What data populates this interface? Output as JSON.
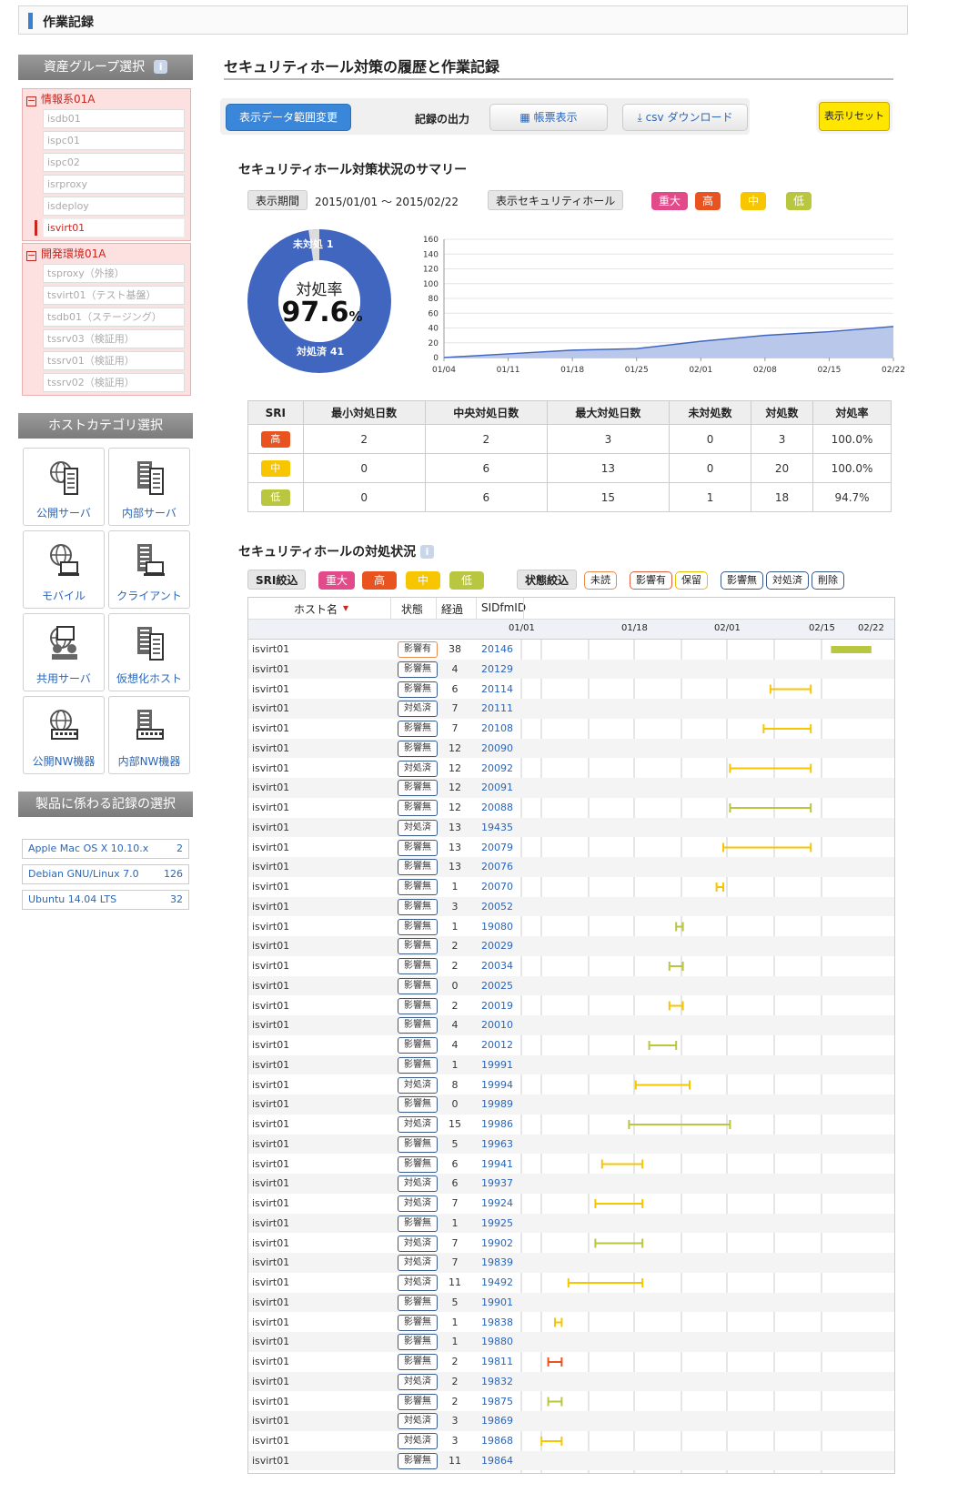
{
  "header": {
    "title": "作業記録"
  },
  "sidebar": {
    "asset_group_title": "資産グループ選択",
    "groups": [
      {
        "name": "情報系01A",
        "items": [
          "isdb01",
          "ispc01",
          "ispc02",
          "isrproxy",
          "isdeploy",
          "isvirt01"
        ],
        "selected": 5
      },
      {
        "name": "開発環境01A",
        "items": [
          "tsproxy（外接）",
          "tsvirt01（テスト基盤）",
          "tsdb01（ステージング）",
          "tssrv03（検証用）",
          "tssrv01（検証用）",
          "tssrv02（検証用）"
        ]
      }
    ],
    "host_category_title": "ホストカテゴリ選択",
    "categories": [
      "公開サーバ",
      "内部サーバ",
      "モバイル",
      "クライアント",
      "共用サーバ",
      "仮想化ホスト",
      "公開NW機器",
      "内部NW機器"
    ],
    "product_title": "製品に係わる記録の選択",
    "products": [
      {
        "name": "Apple Mac OS X 10.10.x",
        "count": "2"
      },
      {
        "name": "Debian GNU/Linux 7.0",
        "count": "126"
      },
      {
        "name": "Ubuntu 14.04 LTS",
        "count": "32"
      }
    ]
  },
  "main": {
    "title": "セキュリティホール対策の履歴と作業記録",
    "btn_range": "表示データ範囲変更",
    "output_label": "記録の出力",
    "btn_report": "帳票表示",
    "btn_csv": "csv ダウンロード",
    "btn_reset": "表示リセット",
    "summary_title": "セキュリティホール対策状況のサマリー",
    "period_label": "表示期間",
    "period_value": "2015/01/01 ～ 2015/02/22",
    "secholes_label": "表示セキュリティホール",
    "sev_tags": [
      "重大",
      "高",
      "中",
      "低"
    ],
    "donut": {
      "label": "対処率",
      "value": "97.6",
      "unit": "%",
      "unhandled": "未対処 1",
      "handled": "対処済 41",
      "fraction": 0.976
    },
    "status_title": "セキュリティホールの対処状況",
    "sri_filter": "SRI絞込",
    "state_filter": "状態絞込",
    "state_tags": [
      "未読",
      "影響有",
      "保留",
      "影響無",
      "対処済",
      "削除"
    ]
  },
  "chart_data": {
    "type": "area",
    "x": [
      "01/04",
      "01/11",
      "01/18",
      "01/25",
      "02/01",
      "02/08",
      "02/15",
      "02/22"
    ],
    "yticks": [
      0,
      20,
      40,
      60,
      80,
      100,
      120,
      140,
      160
    ],
    "ylim": [
      0,
      160
    ],
    "series": [
      {
        "values": [
          0,
          5,
          10,
          12,
          22,
          30,
          35,
          42
        ]
      }
    ]
  },
  "summary_table": {
    "headers": [
      "SRI",
      "最小対処日数",
      "中央対処日数",
      "最大対処日数",
      "未対処数",
      "対処数",
      "対処率"
    ],
    "rows": [
      {
        "sri": "高",
        "color": "#e8531f",
        "cells": [
          "2",
          "2",
          "3",
          "0",
          "3",
          "100.0%"
        ]
      },
      {
        "sri": "中",
        "color": "#f7c600",
        "cells": [
          "0",
          "6",
          "13",
          "0",
          "20",
          "100.0%"
        ]
      },
      {
        "sri": "低",
        "color": "#b9c640",
        "cells": [
          "0",
          "6",
          "15",
          "1",
          "18",
          "94.7%"
        ]
      }
    ]
  },
  "gantt": {
    "headers": [
      "ホスト名",
      "状態",
      "経過",
      "SIDfmID"
    ],
    "dates": [
      "01/01",
      "01/18",
      "02/01",
      "02/15",
      "02/22"
    ],
    "rows": [
      [
        "isvirt01",
        "影響有",
        "38",
        "20146",
        0.0,
        "#b9c640"
      ],
      [
        "isvirt01",
        "影響無",
        "4",
        "20129",
        0.0,
        "#f7c600"
      ],
      [
        "isvirt01",
        "影響無",
        "6",
        "20114",
        0.0,
        "#f7c600"
      ],
      [
        "isvirt01",
        "対処済",
        "7",
        "20111",
        0.0,
        "#f7c600"
      ],
      [
        "isvirt01",
        "影響無",
        "7",
        "20108",
        0.0,
        "#f7c600"
      ],
      [
        "isvirt01",
        "影響無",
        "12",
        "20090",
        0.0,
        "#b9c640"
      ],
      [
        "isvirt01",
        "対処済",
        "12",
        "20092",
        0.0,
        "#f7c600"
      ],
      [
        "isvirt01",
        "影響無",
        "12",
        "20091",
        0.0,
        "#f7c600"
      ],
      [
        "isvirt01",
        "影響無",
        "12",
        "20088",
        0.0,
        "#b9c640"
      ],
      [
        "isvirt01",
        "対処済",
        "13",
        "19435",
        0.0,
        "#f7c600"
      ],
      [
        "isvirt01",
        "影響無",
        "13",
        "20079",
        0.0,
        "#f7c600"
      ],
      [
        "isvirt01",
        "影響無",
        "13",
        "20076",
        0.0,
        "#f7c600"
      ],
      [
        "isvirt01",
        "影響無",
        "1",
        "20070",
        0.0,
        "#f7c600"
      ],
      [
        "isvirt01",
        "影響無",
        "3",
        "20052",
        0.0,
        "#e8531f"
      ],
      [
        "isvirt01",
        "影響無",
        "1",
        "19080",
        0.0,
        "#b9c640"
      ],
      [
        "isvirt01",
        "影響無",
        "2",
        "20029",
        0.0,
        "#f7c600"
      ],
      [
        "isvirt01",
        "影響無",
        "2",
        "20034",
        0.0,
        "#b9c640"
      ],
      [
        "isvirt01",
        "影響無",
        "0",
        "20025",
        0.0,
        "#f7c600"
      ],
      [
        "isvirt01",
        "影響無",
        "2",
        "20019",
        0.0,
        "#f7c600"
      ],
      [
        "isvirt01",
        "影響無",
        "4",
        "20010",
        0.0,
        "#b9c640"
      ],
      [
        "isvirt01",
        "影響無",
        "4",
        "20012",
        0.0,
        "#b9c640"
      ],
      [
        "isvirt01",
        "影響無",
        "1",
        "19991",
        0.0,
        "#f7c600"
      ],
      [
        "isvirt01",
        "対処済",
        "8",
        "19994",
        0.0,
        "#f7c600"
      ],
      [
        "isvirt01",
        "影響無",
        "0",
        "19989",
        0.0,
        "#b9c640"
      ],
      [
        "isvirt01",
        "対処済",
        "15",
        "19986",
        0.0,
        "#b9c640"
      ],
      [
        "isvirt01",
        "影響無",
        "5",
        "19963",
        0.0,
        "#f7c600"
      ],
      [
        "isvirt01",
        "影響無",
        "6",
        "19941",
        0.0,
        "#f7c600"
      ],
      [
        "isvirt01",
        "対処済",
        "6",
        "19937",
        0.0,
        "#f7c600"
      ],
      [
        "isvirt01",
        "対処済",
        "7",
        "19924",
        0.0,
        "#f7c600"
      ],
      [
        "isvirt01",
        "影響無",
        "1",
        "19925",
        0.0,
        "#b9c640"
      ],
      [
        "isvirt01",
        "対処済",
        "7",
        "19902",
        0.0,
        "#b9c640"
      ],
      [
        "isvirt01",
        "対処済",
        "7",
        "19839",
        0.0,
        "#b9c640"
      ],
      [
        "isvirt01",
        "対処済",
        "11",
        "19492",
        0.0,
        "#f7c600"
      ],
      [
        "isvirt01",
        "影響無",
        "5",
        "19901",
        0.0,
        "#b9c640"
      ],
      [
        "isvirt01",
        "影響無",
        "1",
        "19838",
        0.0,
        "#f7c600"
      ],
      [
        "isvirt01",
        "影響無",
        "1",
        "19880",
        0.0,
        "#b9c640"
      ],
      [
        "isvirt01",
        "影響無",
        "2",
        "19811",
        0.0,
        "#e8531f"
      ],
      [
        "isvirt01",
        "対処済",
        "2",
        "19832",
        0.0,
        "#e8531f"
      ],
      [
        "isvirt01",
        "影響無",
        "2",
        "19875",
        0.0,
        "#b9c640"
      ],
      [
        "isvirt01",
        "対処済",
        "3",
        "19869",
        0.0,
        "#f7c600"
      ],
      [
        "isvirt01",
        "対処済",
        "3",
        "19868",
        0.0,
        "#f7c600"
      ],
      [
        "isvirt01",
        "影響無",
        "11",
        "19864",
        0.0,
        "#f7c600"
      ]
    ]
  }
}
